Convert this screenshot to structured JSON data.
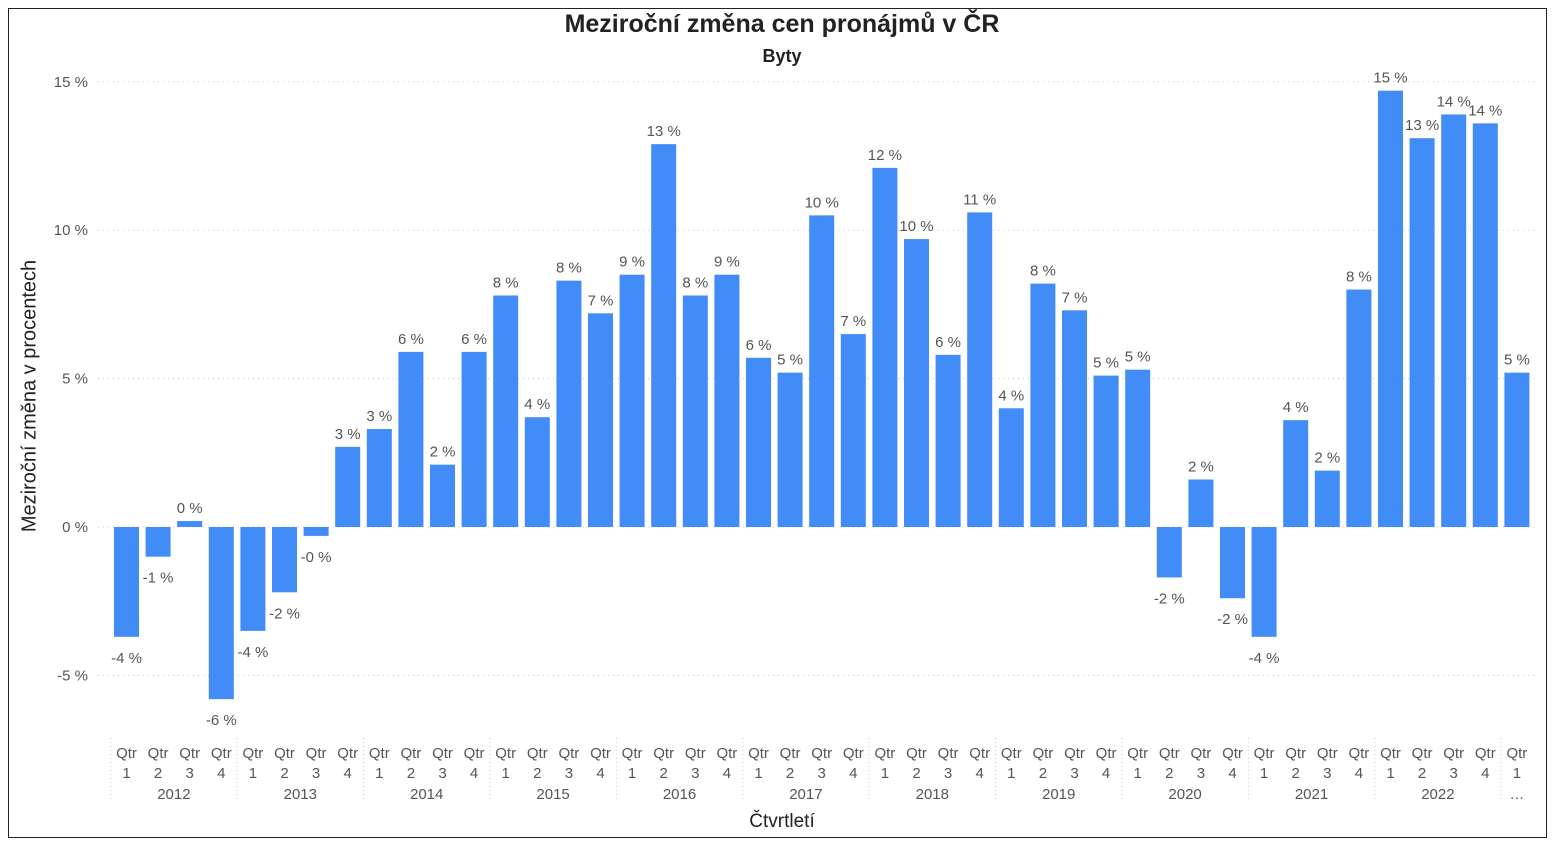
{
  "chart_data": {
    "type": "bar",
    "title": "Meziroční změna cen pronájmů v ČR",
    "subtitle": "Byty",
    "xlabel": "Čtvrtletí",
    "ylabel": "Meziroční změna v procentech",
    "ylim": [
      -7,
      16
    ],
    "yticks": [
      -5,
      0,
      5,
      10,
      15
    ],
    "ytick_labels": [
      "-5 %",
      "0 %",
      "5 %",
      "10 %",
      "15 %"
    ],
    "grid": "horizontal dotted",
    "bar_color": "#418CF6",
    "quarter_prefix": "Qtr",
    "categories": [
      {
        "q": "1",
        "year": "2012"
      },
      {
        "q": "2",
        "year": "2012"
      },
      {
        "q": "3",
        "year": "2012"
      },
      {
        "q": "4",
        "year": "2012"
      },
      {
        "q": "1",
        "year": "2013"
      },
      {
        "q": "2",
        "year": "2013"
      },
      {
        "q": "3",
        "year": "2013"
      },
      {
        "q": "4",
        "year": "2013"
      },
      {
        "q": "1",
        "year": "2014"
      },
      {
        "q": "2",
        "year": "2014"
      },
      {
        "q": "3",
        "year": "2014"
      },
      {
        "q": "4",
        "year": "2014"
      },
      {
        "q": "1",
        "year": "2015"
      },
      {
        "q": "2",
        "year": "2015"
      },
      {
        "q": "3",
        "year": "2015"
      },
      {
        "q": "4",
        "year": "2015"
      },
      {
        "q": "1",
        "year": "2016"
      },
      {
        "q": "2",
        "year": "2016"
      },
      {
        "q": "3",
        "year": "2016"
      },
      {
        "q": "4",
        "year": "2016"
      },
      {
        "q": "1",
        "year": "2017"
      },
      {
        "q": "2",
        "year": "2017"
      },
      {
        "q": "3",
        "year": "2017"
      },
      {
        "q": "4",
        "year": "2017"
      },
      {
        "q": "1",
        "year": "2018"
      },
      {
        "q": "2",
        "year": "2018"
      },
      {
        "q": "3",
        "year": "2018"
      },
      {
        "q": "4",
        "year": "2018"
      },
      {
        "q": "1",
        "year": "2019"
      },
      {
        "q": "2",
        "year": "2019"
      },
      {
        "q": "3",
        "year": "2019"
      },
      {
        "q": "4",
        "year": "2019"
      },
      {
        "q": "1",
        "year": "2020"
      },
      {
        "q": "2",
        "year": "2020"
      },
      {
        "q": "3",
        "year": "2020"
      },
      {
        "q": "4",
        "year": "2020"
      },
      {
        "q": "1",
        "year": "2021"
      },
      {
        "q": "2",
        "year": "2021"
      },
      {
        "q": "3",
        "year": "2021"
      },
      {
        "q": "4",
        "year": "2021"
      },
      {
        "q": "1",
        "year": "2022"
      },
      {
        "q": "2",
        "year": "2022"
      },
      {
        "q": "3",
        "year": "2022"
      },
      {
        "q": "4",
        "year": "2022"
      },
      {
        "q": "1",
        "year": "…"
      }
    ],
    "year_groups": [
      "2012",
      "2013",
      "2014",
      "2015",
      "2016",
      "2017",
      "2018",
      "2019",
      "2020",
      "2021",
      "2022",
      "…"
    ],
    "values": [
      -3.7,
      -1.0,
      0.2,
      -5.8,
      -3.5,
      -2.2,
      -0.3,
      2.7,
      3.3,
      5.9,
      2.1,
      5.9,
      7.8,
      3.7,
      8.3,
      7.2,
      8.5,
      12.9,
      7.8,
      8.5,
      5.7,
      5.2,
      10.5,
      6.5,
      12.1,
      9.7,
      5.8,
      10.6,
      4.0,
      8.2,
      7.3,
      5.1,
      5.3,
      -1.7,
      1.6,
      -2.4,
      -3.7,
      3.6,
      1.9,
      8.0,
      14.7,
      13.1,
      13.9,
      13.6,
      5.2
    ],
    "data_labels": [
      "-4 %",
      "-1 %",
      "0 %",
      "-6 %",
      "-4 %",
      "-2 %",
      "-0 %",
      "3 %",
      "3 %",
      "6 %",
      "2 %",
      "6 %",
      "8 %",
      "4 %",
      "8 %",
      "7 %",
      "9 %",
      "13 %",
      "8 %",
      "9 %",
      "6 %",
      "5 %",
      "10 %",
      "7 %",
      "12 %",
      "10 %",
      "6 %",
      "11 %",
      "4 %",
      "8 %",
      "7 %",
      "5 %",
      "5 %",
      "-2 %",
      "2 %",
      "-2 %",
      "-4 %",
      "4 %",
      "2 %",
      "8 %",
      "15 %",
      "13 %",
      "14 %",
      "14 %",
      "5 %"
    ]
  }
}
